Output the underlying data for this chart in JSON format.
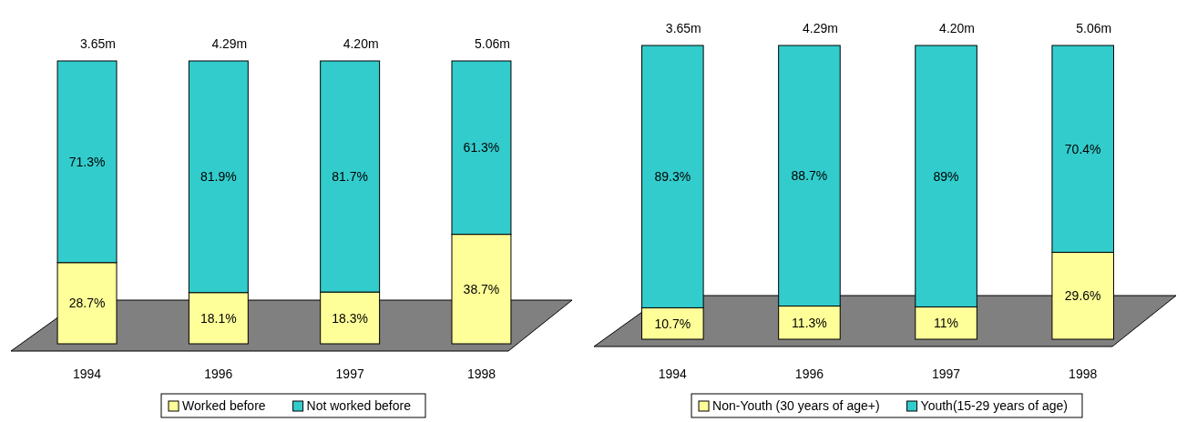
{
  "chart_data": [
    {
      "type": "bar",
      "stacked": true,
      "categories": [
        "1994",
        "1996",
        "1997",
        "1998"
      ],
      "ylim": [
        0,
        100
      ],
      "tick_labels": "x",
      "legend": "bottom",
      "annotations": [
        {
          "text": "3.65m",
          "x": "1994",
          "y": 100
        },
        {
          "text": "4.29m",
          "x": "1996",
          "y": 100
        },
        {
          "text": "4.20m",
          "x": "1997",
          "y": 100
        },
        {
          "text": "5.06m",
          "x": "1998",
          "y": 100
        }
      ],
      "series": [
        {
          "name": "Worked before",
          "color": "#ffff99",
          "values": [
            28.7,
            18.1,
            18.3,
            38.7
          ],
          "value_labels": [
            "28.7%",
            "18.1%",
            "18.3%",
            "38.7%"
          ]
        },
        {
          "name": "Not worked before",
          "color": "#33cccc",
          "values": [
            71.3,
            81.9,
            81.7,
            61.3
          ],
          "value_labels": [
            "71.3%",
            "81.9%",
            "81.7%",
            "61.3%"
          ]
        }
      ]
    },
    {
      "type": "bar",
      "stacked": true,
      "categories": [
        "1994",
        "1996",
        "1997",
        "1998"
      ],
      "ylim": [
        0,
        100
      ],
      "tick_labels": "x",
      "legend": "bottom",
      "annotations": [
        {
          "text": "3.65m",
          "x": "1994",
          "y": 100
        },
        {
          "text": "4.29m",
          "x": "1996",
          "y": 100
        },
        {
          "text": "4.20m",
          "x": "1997",
          "y": 100
        },
        {
          "text": "5.06m",
          "x": "1998",
          "y": 100
        }
      ],
      "series": [
        {
          "name": "Non-Youth (30 years of age+)",
          "color": "#ffff99",
          "values": [
            10.7,
            11.3,
            11,
            29.6
          ],
          "value_labels": [
            "10.7%",
            "11.3%",
            "11%",
            "29.6%"
          ]
        },
        {
          "name": "Youth(15-29 years of age)",
          "color": "#33cccc",
          "values": [
            89.3,
            88.7,
            89,
            70.4
          ],
          "value_labels": [
            "89.3%",
            "88.7%",
            "89%",
            "70.4%"
          ]
        }
      ]
    }
  ]
}
